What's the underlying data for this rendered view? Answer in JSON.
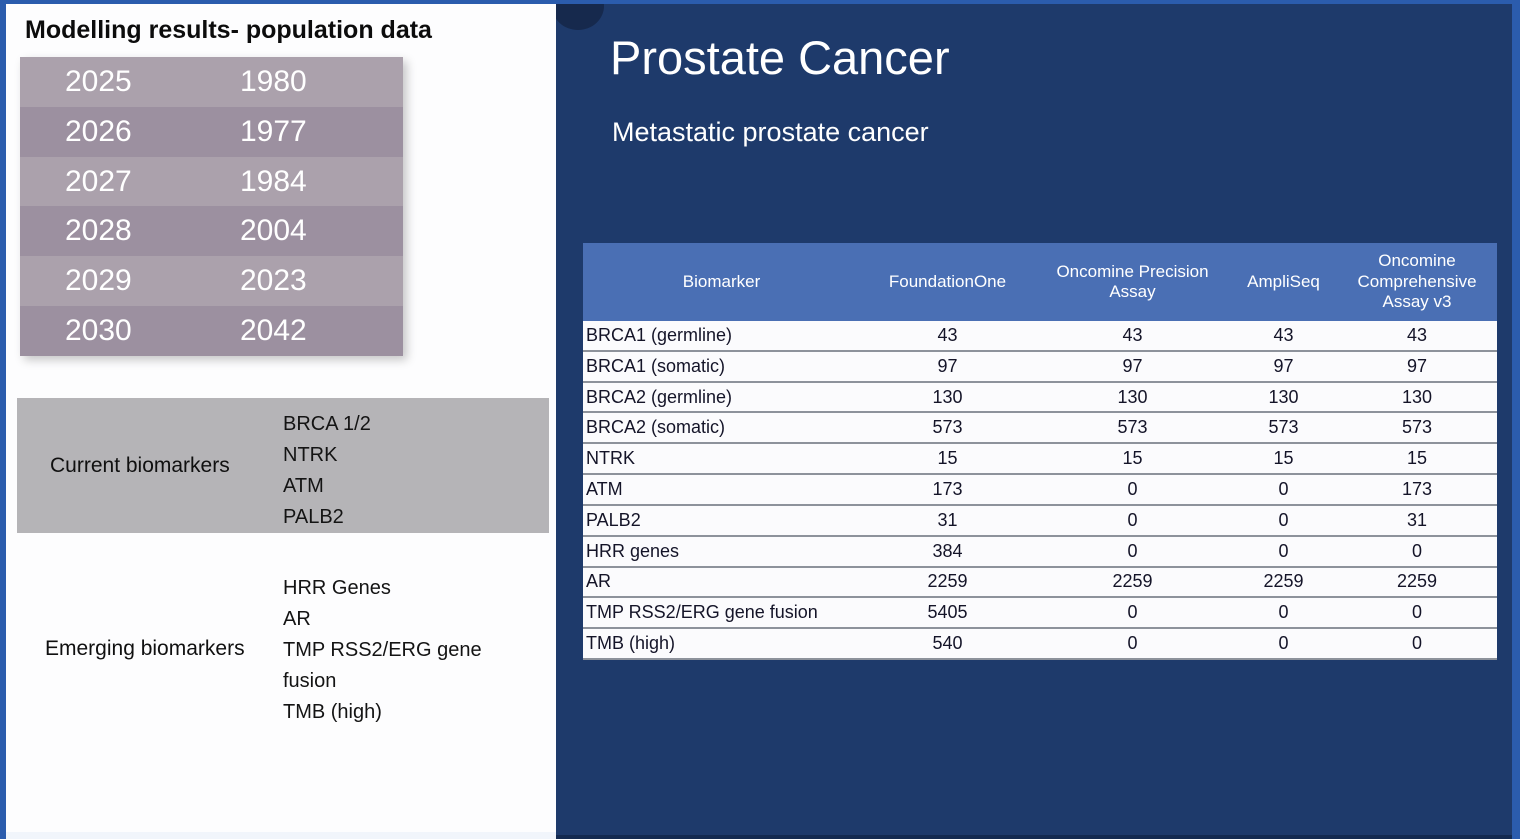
{
  "left_panel": {
    "title": "Modelling results- population data",
    "population_table": {
      "rows": [
        {
          "year": "2025",
          "value": "1980"
        },
        {
          "year": "2026",
          "value": "1977"
        },
        {
          "year": "2027",
          "value": "1984"
        },
        {
          "year": "2028",
          "value": "2004"
        },
        {
          "year": "2029",
          "value": "2023"
        },
        {
          "year": "2030",
          "value": "2042"
        }
      ]
    },
    "current_biomarkers": {
      "label": "Current biomarkers",
      "items": [
        "BRCA 1/2",
        "NTRK",
        "ATM",
        "PALB2"
      ]
    },
    "emerging_biomarkers": {
      "label": "Emerging biomarkers",
      "items": [
        "HRR Genes",
        "AR",
        "TMP RSS2/ERG gene fusion",
        "TMB (high)"
      ]
    }
  },
  "right_panel": {
    "title": "Prostate Cancer",
    "subtitle": "Metastatic prostate cancer",
    "biomarker_table": {
      "headers": [
        "Biomarker",
        "FoundationOne",
        "Oncomine Precision Assay",
        "AmpliSeq",
        "Oncomine Comprehensive Assay v3"
      ],
      "rows": [
        {
          "biomarker": "BRCA1 (germline)",
          "values": [
            "43",
            "43",
            "43",
            "43"
          ]
        },
        {
          "biomarker": "BRCA1 (somatic)",
          "values": [
            "97",
            "97",
            "97",
            "97"
          ]
        },
        {
          "biomarker": "BRCA2 (germline)",
          "values": [
            "130",
            "130",
            "130",
            "130"
          ]
        },
        {
          "biomarker": "BRCA2 (somatic)",
          "values": [
            "573",
            "573",
            "573",
            "573"
          ]
        },
        {
          "biomarker": "NTRK",
          "values": [
            "15",
            "15",
            "15",
            "15"
          ]
        },
        {
          "biomarker": "ATM",
          "values": [
            "173",
            "0",
            "0",
            "173"
          ]
        },
        {
          "biomarker": "PALB2",
          "values": [
            "31",
            "0",
            "0",
            "31"
          ]
        },
        {
          "biomarker": "HRR genes",
          "values": [
            "384",
            "0",
            "0",
            "0"
          ]
        },
        {
          "biomarker": "AR",
          "values": [
            "2259",
            "2259",
            "2259",
            "2259"
          ]
        },
        {
          "biomarker": "TMP RSS2/ERG gene fusion",
          "values": [
            "5405",
            "0",
            "0",
            "0"
          ]
        },
        {
          "biomarker": "TMB (high)",
          "values": [
            "540",
            "0",
            "0",
            "0"
          ]
        }
      ]
    }
  },
  "colors": {
    "frame_blue": "#2b5cad",
    "navy_background": "#1e3a6b",
    "table_header_blue": "#4a6fb4",
    "population_row_light": "#aba1ac",
    "population_row_dark": "#9c90a0",
    "gray_box": "#b5b4b7"
  }
}
